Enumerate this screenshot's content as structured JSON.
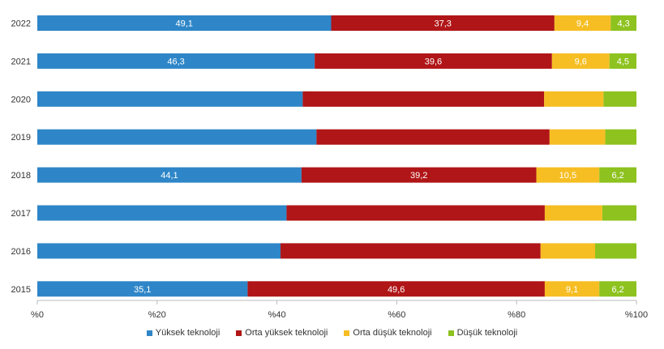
{
  "chart_data": {
    "type": "bar",
    "orientation": "horizontal",
    "stacked": true,
    "categories": [
      "2022",
      "2021",
      "2020",
      "2019",
      "2018",
      "2017",
      "2016",
      "2015"
    ],
    "series": [
      {
        "name": "Yüksek teknoloji",
        "color": "#2E86C8",
        "values": [
          49.1,
          46.3,
          44.3,
          46.6,
          44.1,
          41.6,
          40.6,
          35.1
        ],
        "labels": [
          "49,1",
          "46,3",
          "",
          "",
          "44,1",
          "",
          "",
          "35,1"
        ]
      },
      {
        "name": "Orta yüksek teknoloji",
        "color": "#B01517",
        "values": [
          37.3,
          39.6,
          40.3,
          38.9,
          39.2,
          43.1,
          43.4,
          49.6
        ],
        "labels": [
          "37,3",
          "39,6",
          "",
          "",
          "39,2",
          "",
          "",
          "49,6"
        ]
      },
      {
        "name": "Orta düşük teknoloji",
        "color": "#F6BE23",
        "values": [
          9.4,
          9.6,
          9.9,
          9.3,
          10.5,
          9.6,
          9.1,
          9.1
        ],
        "labels": [
          "9,4",
          "9,6",
          "",
          "",
          "10,5",
          "",
          "",
          "9,1"
        ]
      },
      {
        "name": "Düşük teknoloji",
        "color": "#8DC21F",
        "values": [
          4.3,
          4.5,
          5.5,
          5.2,
          6.2,
          5.7,
          6.9,
          6.2
        ],
        "labels": [
          "4,3",
          "4,5",
          "",
          "",
          "6,2",
          "",
          "",
          "6,2"
        ]
      }
    ],
    "xlim": [
      0,
      100
    ],
    "xticks": [
      "%0",
      "%20",
      "%40",
      "%60",
      "%80",
      "%100"
    ],
    "grid": false,
    "legend_position": "bottom"
  }
}
